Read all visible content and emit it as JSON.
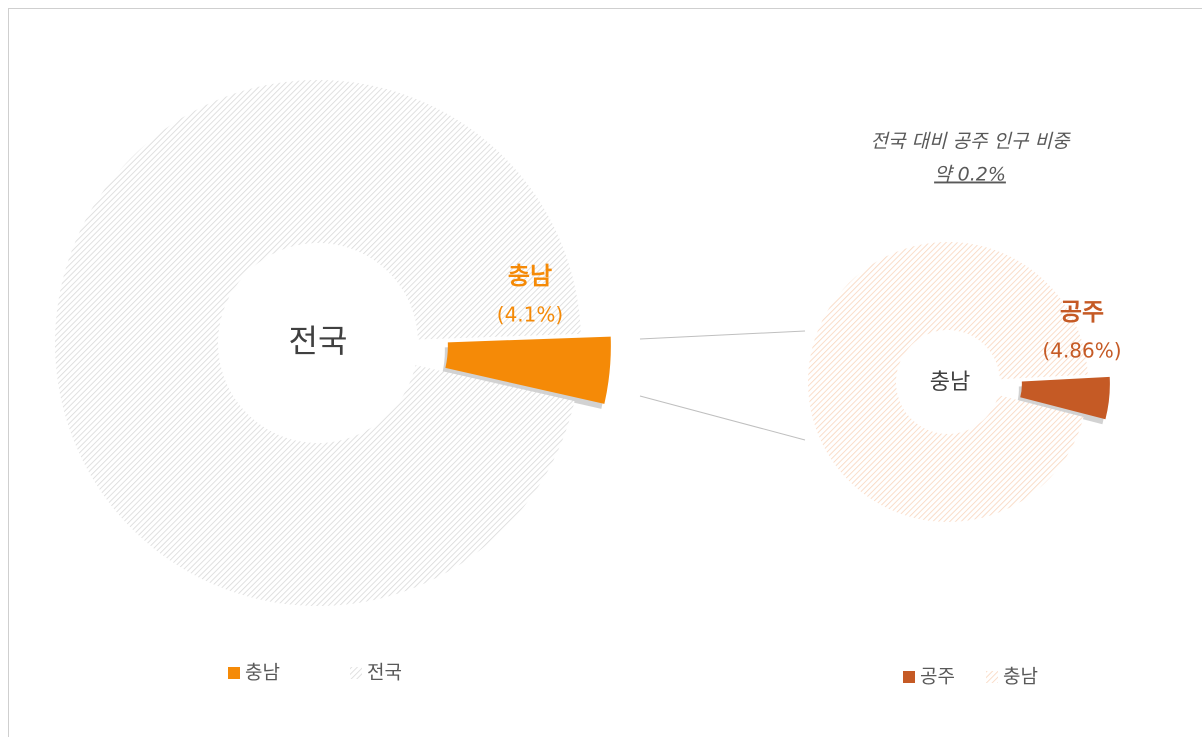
{
  "chart_data": [
    {
      "type": "doughnut",
      "categories": [
        "충남",
        "전국"
      ],
      "values": [
        4.1,
        95.9
      ],
      "value_labels": [
        "(4.1%)",
        null
      ],
      "colors": [
        "#f58a07",
        "#d9d9d9"
      ]
    },
    {
      "type": "doughnut",
      "categories": [
        "공주",
        "충남"
      ],
      "values": [
        4.86,
        95.14
      ],
      "value_labels": [
        "(4.86%)",
        null
      ],
      "colors": [
        "#c55a25",
        "#f9d5bd"
      ],
      "annotations": [
        "전국 대비 공주 인구 비중",
        "약 0.2%"
      ]
    }
  ]
}
